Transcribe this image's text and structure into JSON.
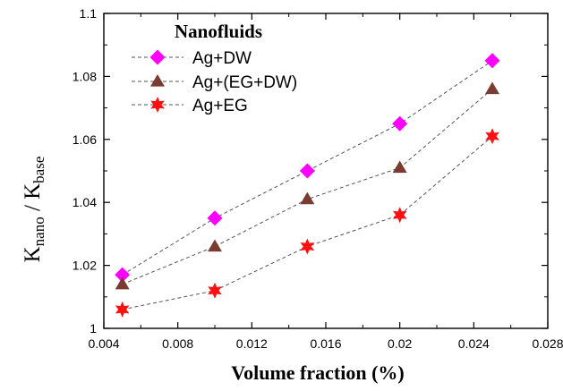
{
  "chart_data": {
    "type": "line",
    "title": "",
    "xlabel": "Volume fraction  (%)",
    "ylabel": {
      "main": "K",
      "sub1": "nano",
      "sep": " / K",
      "sub2": "base"
    },
    "xlim": [
      0.004,
      0.028
    ],
    "ylim": [
      1.0,
      1.1
    ],
    "xticks": [
      "0.004",
      "0.008",
      "0.012",
      "0.016",
      "0.02",
      "0.024",
      "0.028"
    ],
    "yticks": [
      "1",
      "1.02",
      "1.04",
      "1.06",
      "1.08",
      "1.1"
    ],
    "grid": false,
    "legend": {
      "title": "Nanofluids",
      "position": "top-left"
    },
    "x": [
      0.005,
      0.01,
      0.015,
      0.02,
      0.025
    ],
    "series": [
      {
        "name": "Ag+DW",
        "marker": "diamond",
        "color": "#ff00ff",
        "values": [
          1.017,
          1.035,
          1.05,
          1.065,
          1.085
        ]
      },
      {
        "name": "Ag+(EG+DW)",
        "marker": "triangle",
        "color": "#7a3b30",
        "values": [
          1.014,
          1.026,
          1.041,
          1.051,
          1.076
        ]
      },
      {
        "name": "Ag+EG",
        "marker": "star",
        "color": "#ff1010",
        "values": [
          1.006,
          1.012,
          1.026,
          1.036,
          1.061
        ]
      }
    ]
  }
}
